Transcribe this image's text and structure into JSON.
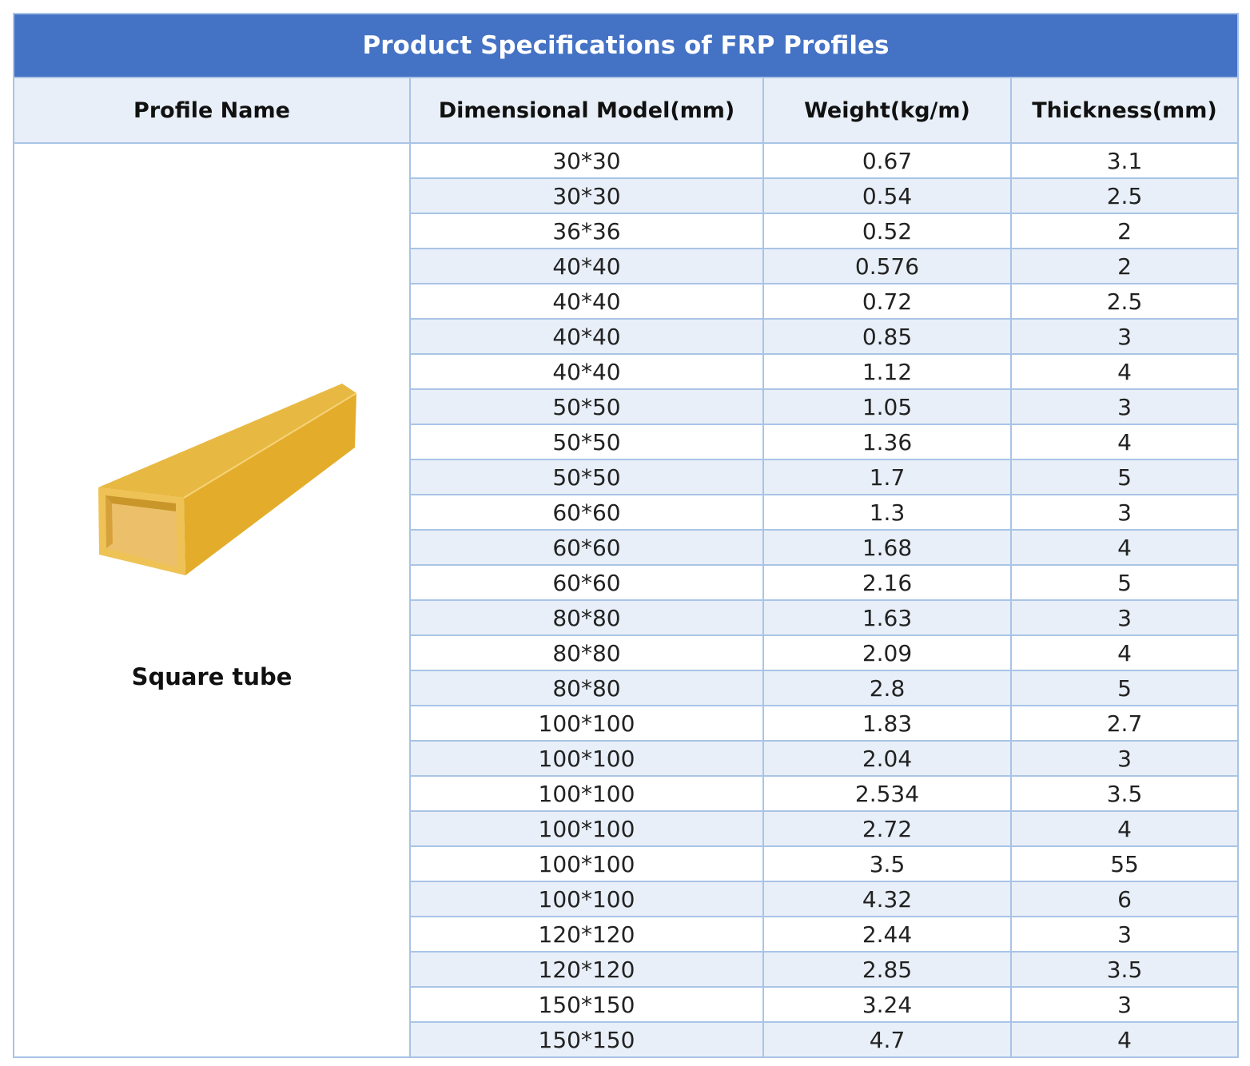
{
  "title": "Product Specifications of FRP Profiles",
  "columns": [
    "Profile Name",
    "Dimensional Model(mm)",
    "Weight(kg/m)",
    "Thickness(mm)"
  ],
  "profile": {
    "name": "Square tube",
    "image_icon": "square-tube-image",
    "color": "#e3ac2a"
  },
  "colors": {
    "header_bg": "#4472c4",
    "stripe_bg": "#e8eff8",
    "border": "#a9c4e6"
  },
  "rows": [
    {
      "model": "30*30",
      "weight": "0.67",
      "thickness": "3.1"
    },
    {
      "model": "30*30",
      "weight": "0.54",
      "thickness": "2.5"
    },
    {
      "model": "36*36",
      "weight": "0.52",
      "thickness": "2"
    },
    {
      "model": "40*40",
      "weight": "0.576",
      "thickness": "2"
    },
    {
      "model": "40*40",
      "weight": "0.72",
      "thickness": "2.5"
    },
    {
      "model": "40*40",
      "weight": "0.85",
      "thickness": "3"
    },
    {
      "model": "40*40",
      "weight": "1.12",
      "thickness": "4"
    },
    {
      "model": "50*50",
      "weight": "1.05",
      "thickness": "3"
    },
    {
      "model": "50*50",
      "weight": "1.36",
      "thickness": "4"
    },
    {
      "model": "50*50",
      "weight": "1.7",
      "thickness": "5"
    },
    {
      "model": "60*60",
      "weight": "1.3",
      "thickness": "3"
    },
    {
      "model": "60*60",
      "weight": "1.68",
      "thickness": "4"
    },
    {
      "model": "60*60",
      "weight": "2.16",
      "thickness": "5"
    },
    {
      "model": "80*80",
      "weight": "1.63",
      "thickness": "3"
    },
    {
      "model": "80*80",
      "weight": "2.09",
      "thickness": "4"
    },
    {
      "model": "80*80",
      "weight": "2.8",
      "thickness": "5"
    },
    {
      "model": "100*100",
      "weight": "1.83",
      "thickness": "2.7"
    },
    {
      "model": "100*100",
      "weight": "2.04",
      "thickness": "3"
    },
    {
      "model": "100*100",
      "weight": "2.534",
      "thickness": "3.5"
    },
    {
      "model": "100*100",
      "weight": "2.72",
      "thickness": "4"
    },
    {
      "model": "100*100",
      "weight": "3.5",
      "thickness": "55"
    },
    {
      "model": "100*100",
      "weight": "4.32",
      "thickness": "6"
    },
    {
      "model": "120*120",
      "weight": "2.44",
      "thickness": "3"
    },
    {
      "model": "120*120",
      "weight": "2.85",
      "thickness": "3.5"
    },
    {
      "model": "150*150",
      "weight": "3.24",
      "thickness": "3"
    },
    {
      "model": "150*150",
      "weight": "4.7",
      "thickness": "4"
    }
  ]
}
